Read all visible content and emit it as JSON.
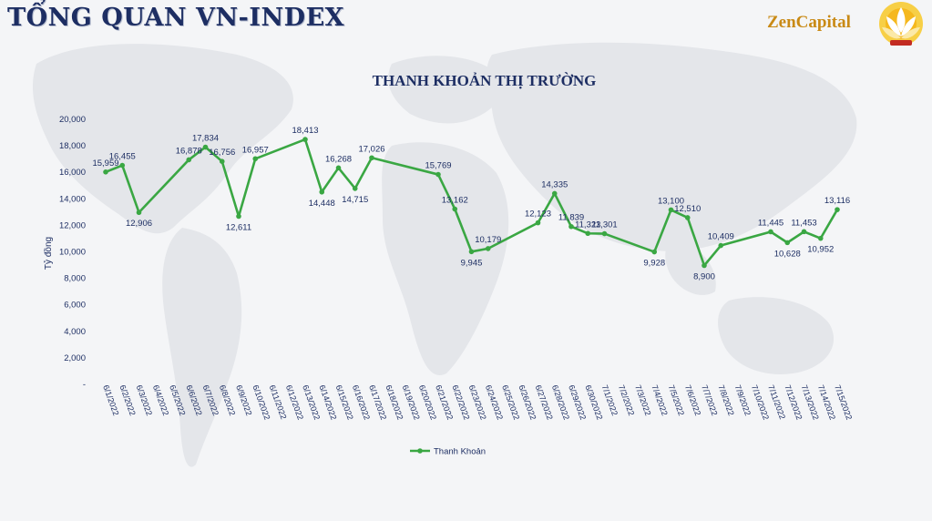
{
  "header": {
    "title": "TỔNG QUAN VN-INDEX",
    "brand": "ZenCapital"
  },
  "colors": {
    "line": "#3aa743",
    "title": "#1d2e63",
    "brand": "#c98a16",
    "text": "#1d2e63"
  },
  "chart_data": {
    "type": "line",
    "title": "THANH KHOẢN THỊ TRƯỜNG",
    "xlabel": "",
    "ylabel": "Tỷ đồng",
    "ylim": [
      0,
      20000
    ],
    "yticks": [
      "-",
      "2,000",
      "4,000",
      "6,000",
      "8,000",
      "10,000",
      "12,000",
      "14,000",
      "16,000",
      "18,000",
      "20,000"
    ],
    "categories": [
      "6/1/2022",
      "6/2/2022",
      "6/3/2022",
      "6/4/2022",
      "6/5/2022",
      "6/6/2022",
      "6/7/2022",
      "6/8/2022",
      "6/9/2022",
      "6/10/2022",
      "6/11/2022",
      "6/12/2022",
      "6/13/2022",
      "6/14/2022",
      "6/15/2022",
      "6/16/2022",
      "6/17/2022",
      "6/18/2022",
      "6/19/2022",
      "6/20/2022",
      "6/21/2022",
      "6/22/2022",
      "6/23/2022",
      "6/24/2022",
      "6/25/2022",
      "6/26/2022",
      "6/27/2022",
      "6/28/2022",
      "6/29/2022",
      "6/30/2022",
      "7/1/2022",
      "7/2/2022",
      "7/3/2022",
      "7/4/2022",
      "7/5/2022",
      "7/6/2022",
      "7/7/2022",
      "7/8/2022",
      "7/9/2022",
      "7/10/2022",
      "7/11/2022",
      "7/12/2022",
      "7/13/2022",
      "7/14/2022",
      "7/15/2022"
    ],
    "legend_position": "bottom",
    "series": [
      {
        "name": "Thanh Khoản",
        "points": [
          {
            "x": "6/1/2022",
            "y": 15959,
            "label": "15,959"
          },
          {
            "x": "6/2/2022",
            "y": 16455,
            "label": "16,455"
          },
          {
            "x": "6/3/2022",
            "y": 12906,
            "label": "12,906"
          },
          {
            "x": "6/6/2022",
            "y": 16878,
            "label": "16,878"
          },
          {
            "x": "6/7/2022",
            "y": 17834,
            "label": "17,834"
          },
          {
            "x": "6/8/2022",
            "y": 16756,
            "label": "16,756"
          },
          {
            "x": "6/9/2022",
            "y": 12611,
            "label": "12,611"
          },
          {
            "x": "6/10/2022",
            "y": 16957,
            "label": "16,957"
          },
          {
            "x": "6/13/2022",
            "y": 18413,
            "label": "18,413"
          },
          {
            "x": "6/14/2022",
            "y": 14448,
            "label": "14,448"
          },
          {
            "x": "6/15/2022",
            "y": 16268,
            "label": "16,268"
          },
          {
            "x": "6/16/2022",
            "y": 14715,
            "label": "14,715"
          },
          {
            "x": "6/17/2022",
            "y": 17026,
            "label": "17,026"
          },
          {
            "x": "6/21/2022",
            "y": 15769,
            "label": "15,769"
          },
          {
            "x": "6/22/2022",
            "y": 13162,
            "label": "13,162"
          },
          {
            "x": "6/23/2022",
            "y": 9945,
            "label": "9,945"
          },
          {
            "x": "6/24/2022",
            "y": 10179,
            "label": "10,179"
          },
          {
            "x": "6/27/2022",
            "y": 12123,
            "label": "12,123"
          },
          {
            "x": "6/28/2022",
            "y": 14335,
            "label": "14,335"
          },
          {
            "x": "6/29/2022",
            "y": 11839,
            "label": "11,839"
          },
          {
            "x": "6/30/2022",
            "y": 11323,
            "label": "11,323"
          },
          {
            "x": "7/1/2022",
            "y": 11301,
            "label": "11,301"
          },
          {
            "x": "7/4/2022",
            "y": 9928,
            "label": "9,928"
          },
          {
            "x": "7/5/2022",
            "y": 13100,
            "label": "13,100"
          },
          {
            "x": "7/6/2022",
            "y": 12510,
            "label": "12,510"
          },
          {
            "x": "7/7/2022",
            "y": 8900,
            "label": "8,900"
          },
          {
            "x": "7/8/2022",
            "y": 10409,
            "label": "10,409"
          },
          {
            "x": "7/11/2022",
            "y": 11445,
            "label": "11,445"
          },
          {
            "x": "7/12/2022",
            "y": 10628,
            "label": "10,628"
          },
          {
            "x": "7/13/2022",
            "y": 11453,
            "label": "11,453"
          },
          {
            "x": "7/14/2022",
            "y": 10952,
            "label": "10,952"
          },
          {
            "x": "7/15/2022",
            "y": 13116,
            "label": "13,116"
          }
        ]
      }
    ]
  }
}
